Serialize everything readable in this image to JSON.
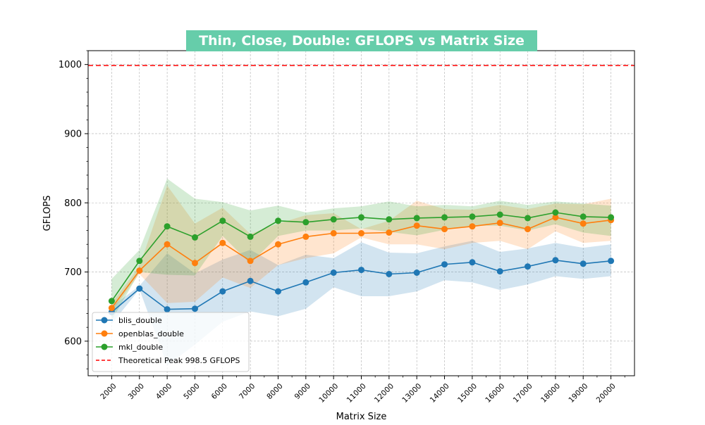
{
  "chart_data": {
    "type": "line",
    "title": "Thin, Close, Double: GFLOPS vs Matrix Size",
    "title_background": "#66cdaa",
    "xlabel": "Matrix Size",
    "ylabel": "GFLOPS",
    "x": [
      2000,
      3000,
      4000,
      5000,
      6000,
      7000,
      8000,
      9000,
      10000,
      11000,
      12000,
      13000,
      14000,
      15000,
      16000,
      17000,
      18000,
      19000,
      20000
    ],
    "x_tick_labels": [
      "2000",
      "3000",
      "4000",
      "5000",
      "6000",
      "7000",
      "8000",
      "9000",
      "10000",
      "11000",
      "12000",
      "13000",
      "14000",
      "15000",
      "16000",
      "17000",
      "18000",
      "19000",
      "20000"
    ],
    "xlim": [
      1150,
      20850
    ],
    "ylim": [
      550,
      1020
    ],
    "y_ticks": [
      600,
      700,
      800,
      900,
      1000
    ],
    "grid": true,
    "legend_position": "lower-left",
    "series": [
      {
        "name": "blis_double",
        "color": "#1f77b4",
        "values": [
          642,
          676,
          646,
          647,
          672,
          687,
          672,
          685,
          699,
          703,
          697,
          699,
          711,
          714,
          701,
          708,
          717,
          712,
          716
        ],
        "lower": [
          625,
          675,
          565,
          595,
          628,
          643,
          636,
          647,
          678,
          665,
          665,
          672,
          688,
          685,
          674,
          682,
          694,
          690,
          694
        ],
        "upper": [
          650,
          680,
          727,
          698,
          718,
          732,
          710,
          725,
          720,
          743,
          728,
          727,
          737,
          745,
          729,
          734,
          742,
          735,
          740
        ]
      },
      {
        "name": "openblas_double",
        "color": "#ff7f0e",
        "values": [
          648,
          702,
          740,
          713,
          742,
          716,
          740,
          751,
          756,
          756,
          757,
          767,
          762,
          766,
          771,
          762,
          779,
          770,
          775
        ],
        "lower": [
          643,
          697,
          655,
          657,
          692,
          677,
          710,
          720,
          727,
          750,
          740,
          740,
          733,
          742,
          745,
          733,
          759,
          742,
          745
        ],
        "upper": [
          655,
          708,
          825,
          770,
          793,
          755,
          770,
          782,
          785,
          762,
          774,
          803,
          791,
          790,
          797,
          791,
          799,
          798,
          806
        ]
      },
      {
        "name": "mkl_double",
        "color": "#2ca02c",
        "values": [
          658,
          716,
          766,
          750,
          774,
          751,
          774,
          772,
          776,
          779,
          776,
          778,
          779,
          780,
          783,
          778,
          786,
          780,
          779
        ],
        "lower": [
          630,
          700,
          696,
          695,
          752,
          712,
          752,
          760,
          760,
          763,
          758,
          753,
          761,
          767,
          767,
          760,
          769,
          757,
          752
        ],
        "upper": [
          690,
          732,
          835,
          806,
          801,
          789,
          796,
          786,
          792,
          795,
          802,
          795,
          797,
          795,
          803,
          797,
          802,
          799,
          796
        ]
      }
    ],
    "reference_line": {
      "name": "Theoretical Peak 998.5 GFLOPS",
      "value": 998.5,
      "color": "#ff0000"
    }
  }
}
